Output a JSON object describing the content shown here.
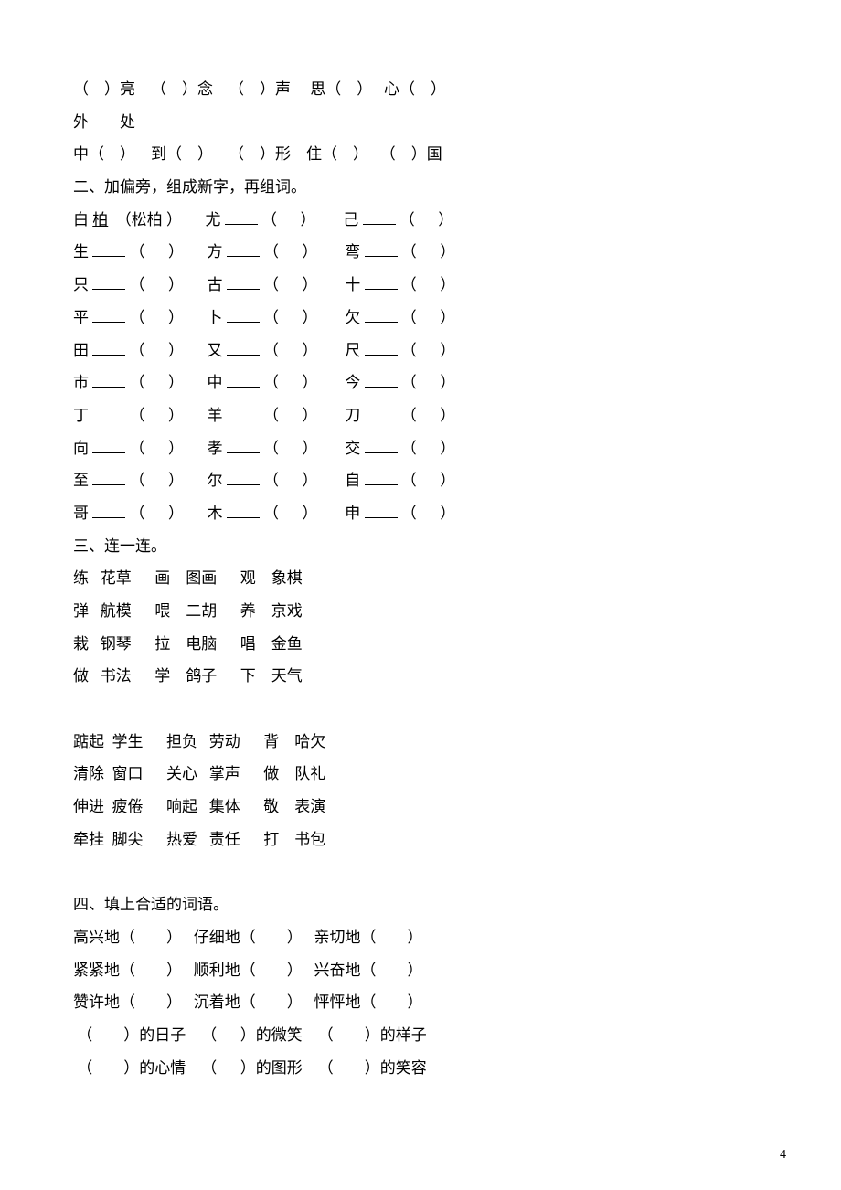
{
  "section1": {
    "r1": {
      "c1a": "（",
      "c1b": "）亮",
      "c2a": "（",
      "c2b": "）念",
      "c3a": "（",
      "c3b": "）声",
      "c4a": "思（",
      "c4b": "）",
      "c5a": "心（",
      "c5b": "）"
    },
    "r2": {
      "c1": "外",
      "c2": "处"
    },
    "r3": {
      "c1": "中（",
      "c1b": "）",
      "c2": "到（",
      "c2b": "）",
      "c3": "（",
      "c3b": "）形",
      "c4": "住（",
      "c4b": "）",
      "c5": "（",
      "c5b": "）国"
    }
  },
  "section2": {
    "title": "二、加偏旁，组成新字，再组词。",
    "rows": [
      {
        "a": "白",
        "af": "柏",
        "ap": "（松柏 ）",
        "b": "尤",
        "c": "己"
      },
      {
        "a": "生",
        "b": "方",
        "c": "弯"
      },
      {
        "a": "只",
        "b": "古",
        "c": "十"
      },
      {
        "a": "平",
        "b": "卜",
        "c": "欠"
      },
      {
        "a": "田",
        "b": "又",
        "c": "尺"
      },
      {
        "a": "市",
        "b": "中",
        "c": "今"
      },
      {
        "a": "丁",
        "b": "羊",
        "c": "刀"
      },
      {
        "a": "向",
        "b": "孝",
        "c": "交"
      },
      {
        "a": "至",
        "b": "尔",
        "c": "自"
      },
      {
        "a": "哥",
        "b": "木",
        "c": "申"
      }
    ]
  },
  "section3": {
    "title": "三、连一连。",
    "block1": [
      {
        "c1": "练",
        "c2": "花草",
        "c3": "画",
        "c4": "图画",
        "c5": "观",
        "c6": "象棋"
      },
      {
        "c1": "弹",
        "c2": "航模",
        "c3": "喂",
        "c4": "二胡",
        "c5": "养",
        "c6": "京戏"
      },
      {
        "c1": "栽",
        "c2": "钢琴",
        "c3": "拉",
        "c4": "电脑",
        "c5": "唱",
        "c6": "金鱼"
      },
      {
        "c1": "做",
        "c2": "书法",
        "c3": "学",
        "c4": "鸽子",
        "c5": "下",
        "c6": "天气"
      }
    ],
    "block2": [
      {
        "c1": "踮起",
        "c2": "学生",
        "c3": "担负",
        "c4": "劳动",
        "c5": "背",
        "c6": "哈欠"
      },
      {
        "c1": "清除",
        "c2": "窗口",
        "c3": "关心",
        "c4": "掌声",
        "c5": "做",
        "c6": "队礼"
      },
      {
        "c1": "伸进",
        "c2": "疲倦",
        "c3": "响起",
        "c4": "集体",
        "c5": "敬",
        "c6": "表演"
      },
      {
        "c1": "牵挂",
        "c2": "脚尖",
        "c3": "热爱",
        "c4": "责任",
        "c5": "打",
        "c6": "书包"
      }
    ]
  },
  "section4": {
    "title": "四、填上合适的词语。",
    "rows1": [
      {
        "a": "高兴地（",
        "b": "）",
        "c": "仔细地（",
        "d": "）",
        "e": "亲切地（",
        "f": "）"
      },
      {
        "a": "紧紧地（",
        "b": "）",
        "c": "顺利地（",
        "d": "）",
        "e": "兴奋地（",
        "f": "）"
      },
      {
        "a": "赞许地（",
        "b": "）",
        "c": "沉着地（",
        "d": "）",
        "e": "怦怦地（",
        "f": "）"
      }
    ],
    "rows2": [
      {
        "a": "（",
        "b": "）的日子",
        "c": "（",
        "d": "）的微笑",
        "e": "（",
        "f": "）的样子"
      },
      {
        "a": "（",
        "b": "）的心情",
        "c": "（",
        "d": "）的图形",
        "e": "（",
        "f": "）的笑容"
      }
    ]
  },
  "pageno": "4"
}
